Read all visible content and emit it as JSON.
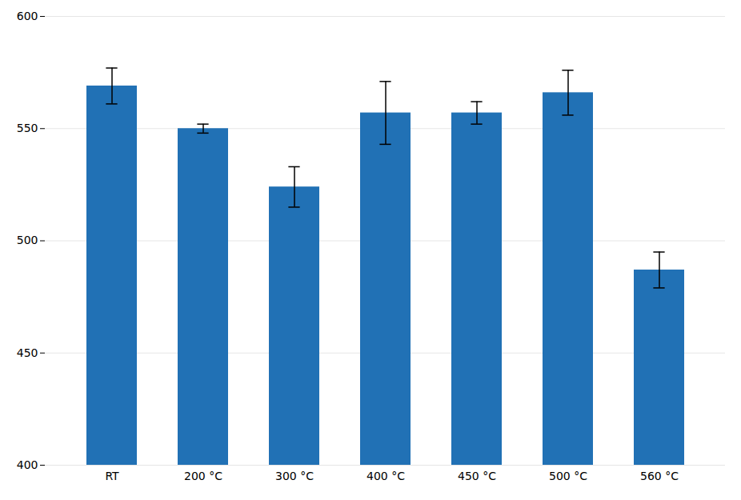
{
  "chart_data": {
    "type": "bar",
    "categories": [
      "RT",
      "200 °C",
      "300 °C",
      "400 °C",
      "450 °C",
      "500 °C",
      "560 °C"
    ],
    "values": [
      569,
      550,
      524,
      557,
      557,
      566,
      487
    ],
    "errors": [
      8,
      2,
      9,
      14,
      5,
      10,
      8
    ],
    "color": "#2171b5",
    "ylim": [
      400,
      600
    ],
    "yticks": [
      400,
      450,
      500,
      550,
      600
    ],
    "grid": true
  }
}
